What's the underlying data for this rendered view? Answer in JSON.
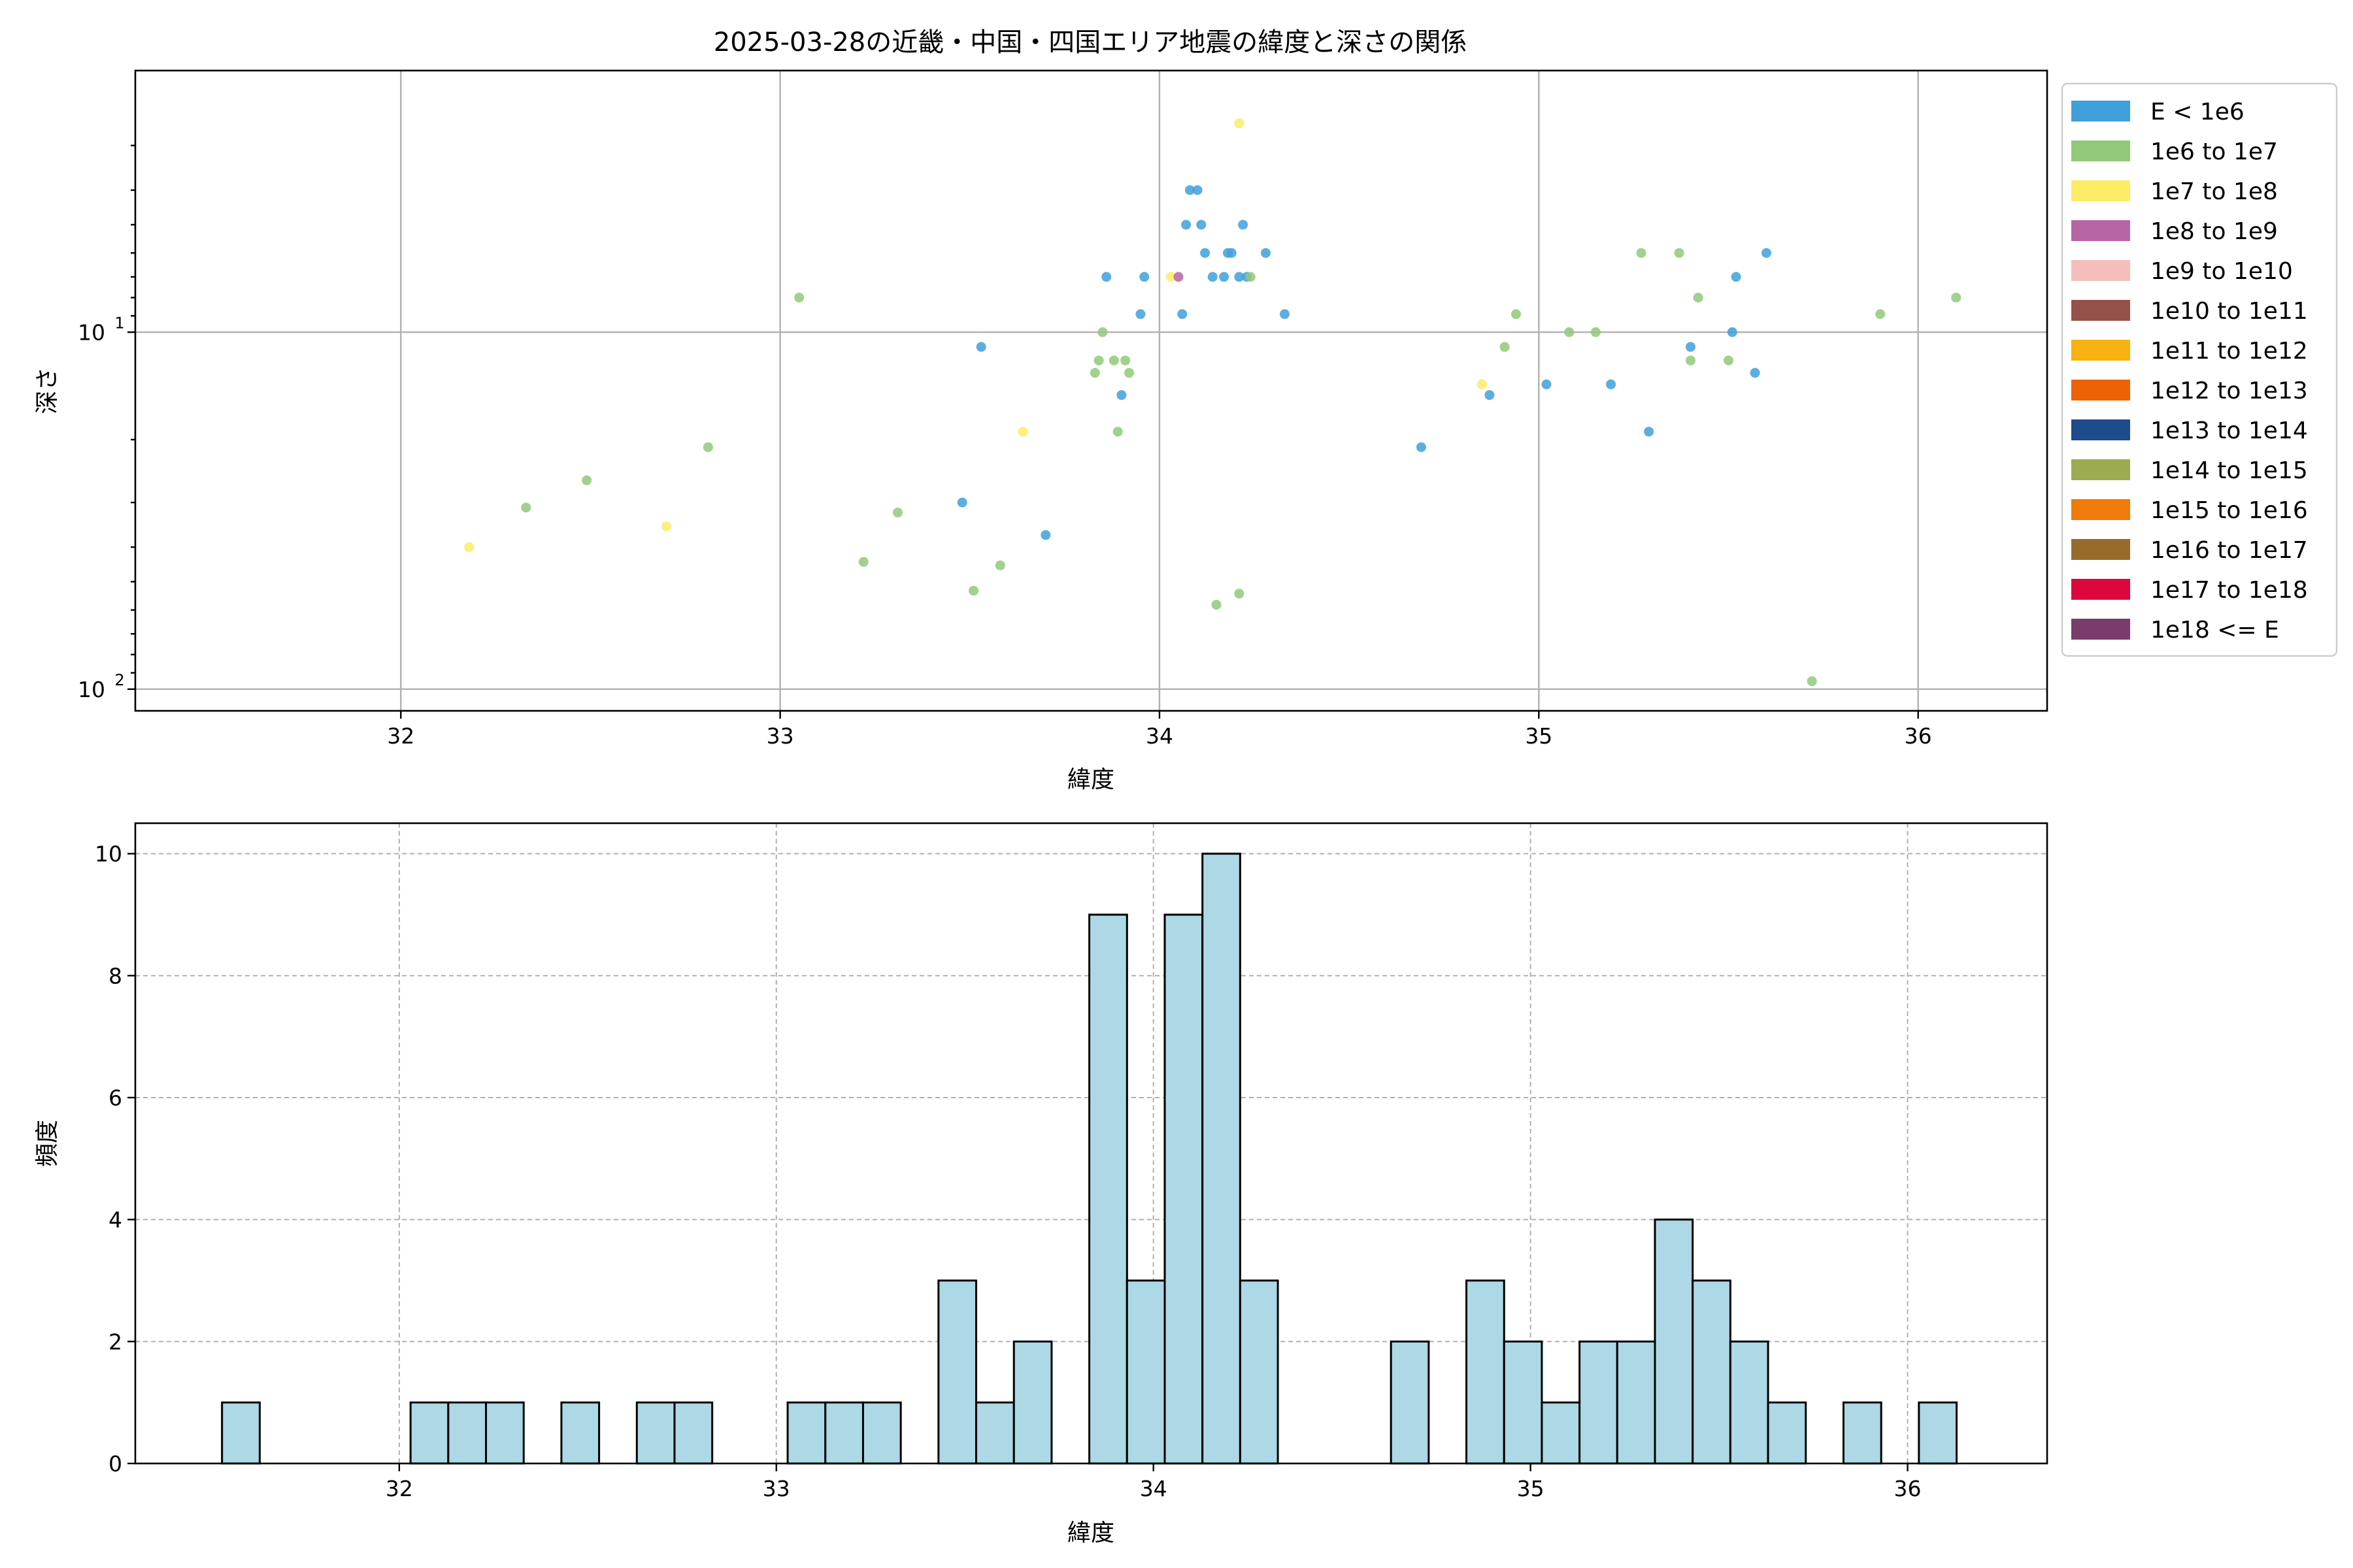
{
  "chart_data": [
    {
      "type": "scatter",
      "title": "2025-03-28の近畿・中国・四国エリア地震の緯度と深さの関係",
      "xlabel": "緯度",
      "ylabel": "深さ",
      "x_ticks": [
        "32",
        "33",
        "34",
        "35",
        "36"
      ],
      "y_ticks": [
        {
          "value": 10,
          "base": "10",
          "exp": "1"
        },
        {
          "value": 100,
          "base": "10",
          "exp": "2"
        }
      ],
      "xlim": [
        31.3,
        36.34
      ],
      "ylim": [
        1.85,
        115
      ],
      "y_scale": "log",
      "y_inverted": true,
      "grid": true,
      "legend_position": "outside-right",
      "legend": [
        {
          "label": "E < 1e6",
          "color": "#3fa0dc"
        },
        {
          "label": "1e6 to 1e7",
          "color": "#92c87a"
        },
        {
          "label": "1e7 to 1e8",
          "color": "#fcec66"
        },
        {
          "label": "1e8 to 1e9",
          "color": "#b865a6"
        },
        {
          "label": "1e9 to 1e10",
          "color": "#f4bfbb"
        },
        {
          "label": "1e10 to 1e11",
          "color": "#955149"
        },
        {
          "label": "1e11 to 1e12",
          "color": "#f7b20f"
        },
        {
          "label": "1e12 to 1e13",
          "color": "#ed6205"
        },
        {
          "label": "1e13 to 1e14",
          "color": "#1d4b8c"
        },
        {
          "label": "1e14 to 1e15",
          "color": "#9cab52"
        },
        {
          "label": "1e15 to 1e16",
          "color": "#f07a0a"
        },
        {
          "label": "1e16 to 1e17",
          "color": "#976c2b"
        },
        {
          "label": "1e17 to 1e18",
          "color": "#dc073c"
        },
        {
          "label": "1e18 <= E",
          "color": "#7a3d6b"
        }
      ],
      "series": [
        {
          "class": 0,
          "points": [
            [
              34.08,
              4.0
            ],
            [
              34.1,
              4.0
            ],
            [
              34.07,
              5.0
            ],
            [
              34.11,
              5.0
            ],
            [
              34.22,
              5.0
            ],
            [
              34.12,
              6.0
            ],
            [
              34.18,
              6.0
            ],
            [
              34.19,
              6.0
            ],
            [
              34.28,
              6.0
            ],
            [
              33.86,
              7.0
            ],
            [
              33.96,
              7.0
            ],
            [
              34.14,
              7.0
            ],
            [
              34.17,
              7.0
            ],
            [
              34.21,
              7.0
            ],
            [
              34.23,
              7.0
            ],
            [
              33.95,
              8.9
            ],
            [
              34.06,
              8.9
            ],
            [
              34.33,
              8.9
            ],
            [
              33.53,
              11.0
            ],
            [
              33.9,
              15.0
            ],
            [
              33.48,
              30.0
            ],
            [
              33.7,
              37.0
            ],
            [
              35.6,
              6.0
            ],
            [
              35.52,
              7.0
            ],
            [
              35.51,
              10.0
            ],
            [
              35.4,
              11.0
            ],
            [
              35.57,
              13.0
            ],
            [
              35.02,
              14.0
            ],
            [
              35.19,
              14.0
            ],
            [
              34.87,
              15.0
            ],
            [
              35.29,
              19.0
            ],
            [
              34.69,
              21.0
            ]
          ]
        },
        {
          "class": 1,
          "points": [
            [
              33.05,
              8.0
            ],
            [
              33.85,
              10.0
            ],
            [
              33.84,
              12.0
            ],
            [
              33.88,
              12.0
            ],
            [
              33.91,
              12.0
            ],
            [
              33.83,
              13.0
            ],
            [
              33.92,
              13.0
            ],
            [
              33.89,
              19.0
            ],
            [
              32.81,
              21.0
            ],
            [
              32.49,
              26.0
            ],
            [
              32.33,
              31.0
            ],
            [
              33.31,
              32.0
            ],
            [
              33.22,
              44.0
            ],
            [
              33.58,
              45.0
            ],
            [
              33.51,
              53.0
            ],
            [
              34.21,
              54.0
            ],
            [
              34.15,
              58.0
            ],
            [
              34.24,
              7.0
            ],
            [
              35.27,
              6.0
            ],
            [
              35.37,
              6.0
            ],
            [
              35.42,
              8.0
            ],
            [
              36.1,
              8.0
            ],
            [
              34.94,
              8.9
            ],
            [
              35.9,
              8.9
            ],
            [
              35.08,
              10.0
            ],
            [
              35.15,
              10.0
            ],
            [
              34.91,
              11.0
            ],
            [
              35.4,
              12.0
            ],
            [
              35.5,
              12.0
            ],
            [
              35.72,
              95.0
            ]
          ]
        },
        {
          "class": 2,
          "points": [
            [
              34.21,
              2.6
            ],
            [
              34.03,
              7.0
            ],
            [
              34.85,
              14.0
            ],
            [
              33.64,
              19.0
            ],
            [
              32.7,
              35.0
            ],
            [
              32.18,
              40.0
            ]
          ]
        },
        {
          "class": 3,
          "points": [
            [
              34.05,
              7.0
            ]
          ]
        }
      ]
    },
    {
      "type": "bar",
      "subtype": "histogram",
      "xlabel": "緯度",
      "ylabel": "頻度",
      "x_ticks": [
        "32",
        "33",
        "34",
        "35",
        "36"
      ],
      "y_ticks": [
        "0",
        "2",
        "4",
        "6",
        "8",
        "10"
      ],
      "xlim": [
        31.3,
        36.37
      ],
      "ylim": [
        0,
        10.5
      ],
      "grid": true,
      "bin_start": 31.53,
      "bin_width": 0.1,
      "values": [
        1,
        0,
        0,
        0,
        0,
        1,
        1,
        1,
        0,
        1,
        0,
        1,
        1,
        0,
        0,
        1,
        1,
        1,
        0,
        3,
        1,
        2,
        0,
        9,
        3,
        9,
        10,
        3,
        0,
        0,
        0,
        2,
        0,
        3,
        2,
        1,
        2,
        2,
        4,
        3,
        2,
        1,
        0,
        1,
        0,
        1
      ]
    }
  ]
}
